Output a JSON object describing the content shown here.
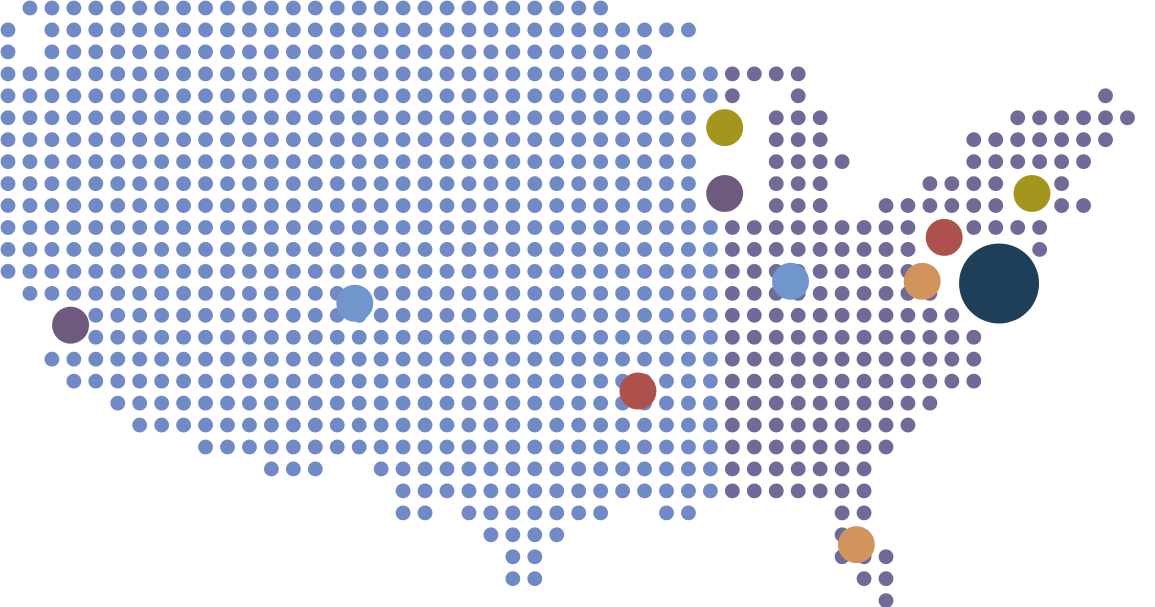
{
  "map": {
    "background_color": "#ffffff",
    "dot_color_west": "#7189c4",
    "dot_color_east": "#6f6b96",
    "rows": [
      {
        "row": 0,
        "runs": [
          [
            1,
            27
          ]
        ]
      },
      {
        "row": 1,
        "runs": [
          [
            0,
            0
          ],
          [
            2,
            31
          ]
        ]
      },
      {
        "row": 2,
        "runs": [
          [
            0,
            0
          ],
          [
            2,
            29
          ]
        ]
      },
      {
        "row": 3,
        "runs": [
          [
            0,
            36
          ]
        ]
      },
      {
        "row": 4,
        "runs": [
          [
            0,
            33
          ],
          [
            36,
            36
          ],
          [
            50,
            50
          ]
        ]
      },
      {
        "row": 5,
        "runs": [
          [
            0,
            31
          ],
          [
            35,
            37
          ],
          [
            46,
            51
          ]
        ]
      },
      {
        "row": 6,
        "runs": [
          [
            0,
            31
          ],
          [
            35,
            37
          ],
          [
            44,
            50
          ]
        ]
      },
      {
        "row": 7,
        "runs": [
          [
            0,
            31
          ],
          [
            35,
            38
          ],
          [
            44,
            49
          ]
        ]
      },
      {
        "row": 8,
        "runs": [
          [
            0,
            31
          ],
          [
            35,
            37
          ],
          [
            42,
            45
          ],
          [
            48,
            48
          ]
        ]
      },
      {
        "row": 9,
        "runs": [
          [
            0,
            31
          ],
          [
            35,
            37
          ],
          [
            40,
            45
          ],
          [
            48,
            49
          ]
        ]
      },
      {
        "row": 10,
        "runs": [
          [
            0,
            41
          ],
          [
            44,
            47
          ]
        ]
      },
      {
        "row": 11,
        "runs": [
          [
            0,
            41
          ],
          [
            47,
            47
          ]
        ]
      },
      {
        "row": 12,
        "runs": [
          [
            0,
            41
          ]
        ]
      },
      {
        "row": 13,
        "runs": [
          [
            1,
            42
          ]
        ]
      },
      {
        "row": 14,
        "runs": [
          [
            4,
            43
          ]
        ]
      },
      {
        "row": 15,
        "runs": [
          [
            4,
            44
          ]
        ]
      },
      {
        "row": 16,
        "runs": [
          [
            2,
            44
          ]
        ]
      },
      {
        "row": 17,
        "runs": [
          [
            3,
            44
          ]
        ]
      },
      {
        "row": 18,
        "runs": [
          [
            5,
            42
          ]
        ]
      },
      {
        "row": 19,
        "runs": [
          [
            6,
            41
          ]
        ]
      },
      {
        "row": 20,
        "runs": [
          [
            9,
            40
          ]
        ]
      },
      {
        "row": 21,
        "runs": [
          [
            12,
            14
          ],
          [
            17,
            39
          ]
        ]
      },
      {
        "row": 22,
        "runs": [
          [
            18,
            39
          ]
        ]
      },
      {
        "row": 23,
        "runs": [
          [
            18,
            19
          ],
          [
            21,
            27
          ],
          [
            30,
            31
          ],
          [
            38,
            39
          ]
        ]
      },
      {
        "row": 24,
        "runs": [
          [
            22,
            25
          ],
          [
            38,
            38
          ]
        ]
      },
      {
        "row": 25,
        "runs": [
          [
            23,
            24
          ],
          [
            38,
            40
          ]
        ]
      },
      {
        "row": 26,
        "runs": [
          [
            23,
            24
          ],
          [
            39,
            40
          ]
        ]
      },
      {
        "row": 27,
        "runs": [
          [
            40,
            40
          ]
        ]
      }
    ],
    "region_split_column": 33,
    "markers": [
      {
        "id": "marker-1",
        "size": "small",
        "color": "#a3961f",
        "col": 32.65,
        "row": 5.45
      },
      {
        "id": "marker-2",
        "size": "small",
        "color": "#6f5a7e",
        "col": 32.65,
        "row": 8.45
      },
      {
        "id": "marker-3",
        "size": "small",
        "color": "#a3961f",
        "col": 46.65,
        "row": 8.45
      },
      {
        "id": "marker-4",
        "size": "small",
        "color": "#ae514c",
        "col": 42.65,
        "row": 10.45
      },
      {
        "id": "marker-5",
        "size": "small",
        "color": "#7096cc",
        "col": 35.65,
        "row": 12.45
      },
      {
        "id": "marker-6",
        "size": "small",
        "color": "#d2935e",
        "col": 41.65,
        "row": 12.45
      },
      {
        "id": "marker-7",
        "size": "large",
        "color": "#1f3f58",
        "col": 45.15,
        "row": 12.55
      },
      {
        "id": "marker-8",
        "size": "small",
        "color": "#7096cc",
        "col": 15.8,
        "row": 13.45
      },
      {
        "id": "marker-9",
        "size": "small",
        "color": "#6f5a7e",
        "col": 2.85,
        "row": 14.45
      },
      {
        "id": "marker-10",
        "size": "small",
        "color": "#ae514c",
        "col": 28.7,
        "row": 17.45
      },
      {
        "id": "marker-11",
        "size": "small",
        "color": "#d2935e",
        "col": 38.65,
        "row": 24.45
      }
    ]
  }
}
